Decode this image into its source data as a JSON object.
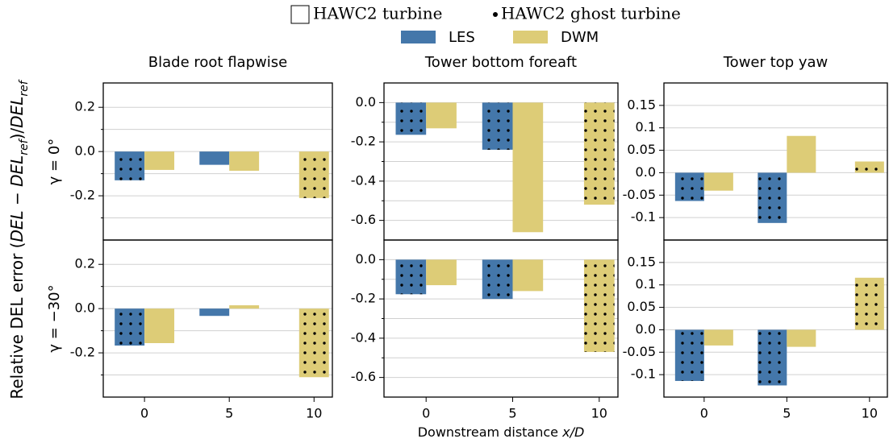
{
  "legend": {
    "markers": [
      "HAWC2 turbine",
      "HAWC2 ghost turbine"
    ],
    "series": [
      {
        "name": "LES",
        "color": "#4477aa"
      },
      {
        "name": "DWM",
        "color": "#ddcc77"
      }
    ]
  },
  "ylabel_parts": [
    "Relative DEL error (",
    "DEL",
    " − ",
    "DEL",
    "ref",
    ")/",
    "DEL",
    "ref"
  ],
  "xlabel_parts": [
    "Downstream distance ",
    "x/D"
  ],
  "chart_data": [
    {
      "type": "bar",
      "title": "Blade root flapwise",
      "row_label": "γ = 0°",
      "ylim": [
        -0.4,
        0.31
      ],
      "yticks": [
        0.2,
        {
          "value": 0,
          "label": "0.0"
        },
        -0.2
      ],
      "yminorticks": [
        0.1,
        -0.1,
        -0.3
      ],
      "grid": true,
      "series": [
        {
          "values": [
            -0.13,
            -0.06,
            null
          ],
          "ghost": [
            true,
            false,
            null
          ]
        },
        {
          "values": [
            -0.083,
            -0.087,
            -0.21
          ],
          "ghost": [
            false,
            false,
            true
          ]
        }
      ]
    },
    {
      "type": "bar",
      "title": "Tower bottom foreaft",
      "ylim": [
        -0.7,
        0.1
      ],
      "yticks": [
        {
          "value": 0,
          "label": "0.0"
        },
        -0.2,
        -0.4,
        -0.6
      ],
      "yminorticks": [
        -0.1,
        -0.3,
        -0.5
      ],
      "grid": true,
      "series": [
        {
          "values": [
            -0.164,
            -0.24,
            null
          ],
          "ghost": [
            true,
            true,
            null
          ]
        },
        {
          "values": [
            -0.131,
            -0.66,
            -0.52
          ],
          "ghost": [
            false,
            false,
            true
          ]
        }
      ]
    },
    {
      "type": "bar",
      "title": "Tower top yaw",
      "ylim": [
        -0.15,
        0.2
      ],
      "yticks": [
        0.15,
        0.1,
        0.05,
        {
          "value": 0,
          "label": "0.0"
        },
        -0.05,
        -0.1
      ],
      "grid": true,
      "series": [
        {
          "values": [
            -0.063,
            -0.112,
            null
          ],
          "ghost": [
            true,
            true,
            null
          ]
        },
        {
          "values": [
            -0.04,
            0.082,
            0.025
          ],
          "ghost": [
            false,
            false,
            true
          ]
        }
      ]
    },
    {
      "type": "bar",
      "row_label": "γ = −30°",
      "categories": [
        0,
        5,
        10
      ],
      "ylim": [
        -0.4,
        0.31
      ],
      "yticks": [
        0.2,
        {
          "value": 0,
          "label": "0.0"
        },
        -0.2
      ],
      "yminorticks": [
        0.1,
        -0.1,
        -0.3
      ],
      "grid": true,
      "series": [
        {
          "values": [
            -0.167,
            -0.033,
            null
          ],
          "ghost": [
            true,
            false,
            null
          ]
        },
        {
          "values": [
            -0.156,
            0.015,
            -0.31
          ],
          "ghost": [
            false,
            false,
            true
          ]
        }
      ]
    },
    {
      "type": "bar",
      "categories": [
        0,
        5,
        10
      ],
      "ylim": [
        -0.7,
        0.1
      ],
      "yticks": [
        {
          "value": 0,
          "label": "0.0"
        },
        -0.2,
        -0.4,
        -0.6
      ],
      "yminorticks": [
        -0.1,
        -0.3,
        -0.5
      ],
      "grid": true,
      "series": [
        {
          "values": [
            -0.176,
            -0.2,
            null
          ],
          "ghost": [
            true,
            true,
            null
          ]
        },
        {
          "values": [
            -0.13,
            -0.16,
            -0.47
          ],
          "ghost": [
            false,
            false,
            true
          ]
        }
      ]
    },
    {
      "type": "bar",
      "categories": [
        0,
        5,
        10
      ],
      "ylim": [
        -0.15,
        0.2
      ],
      "yticks": [
        0.15,
        0.1,
        0.05,
        {
          "value": 0,
          "label": "0.0"
        },
        -0.05,
        -0.1
      ],
      "grid": true,
      "series": [
        {
          "values": [
            -0.114,
            -0.124,
            null
          ],
          "ghost": [
            true,
            true,
            null
          ]
        },
        {
          "values": [
            -0.035,
            -0.038,
            0.116
          ],
          "ghost": [
            false,
            false,
            true
          ]
        }
      ]
    }
  ]
}
